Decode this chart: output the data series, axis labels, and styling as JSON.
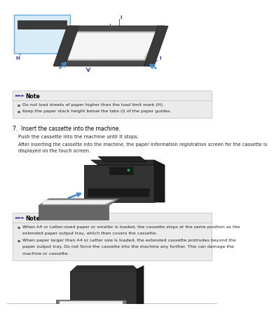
{
  "bg_color": "#ffffff",
  "note_bg": "#ebebeb",
  "note_border": "#bbbbbb",
  "note_icon_color": "#3333aa",
  "text_color": "#222222",
  "bullet_color": "#555555",
  "blue_arrow": "#4488cc",
  "label_color": "#3333aa",
  "note1_header": "Note",
  "note1_bullets": [
    "Do not load sheets of paper higher than the load limit mark (H).",
    "Keep the paper stack height below the tabs (I) of the paper guides."
  ],
  "step7_header": "7.  Insert the cassette into the machine.",
  "step7_body1": "Push the cassette into the machine until it stops.",
  "step7_body2": "After inserting the cassette into the machine, the paper information registration screen for the cassette is\ndisplayed on the touch screen.",
  "note2_header": "Note",
  "note2_bullet1": "When A4 or Letter-sized paper or smaller is loaded, the cassette stops at the same position as the\nextended paper output tray, which then covers the cassette.",
  "note2_bullet2": "When paper larger than A4 or Letter size is loaded, the extended cassette protrudes beyond the\npaper output tray. Do not force the cassette into the machine any further. This can damage the\nmachine or cassette."
}
